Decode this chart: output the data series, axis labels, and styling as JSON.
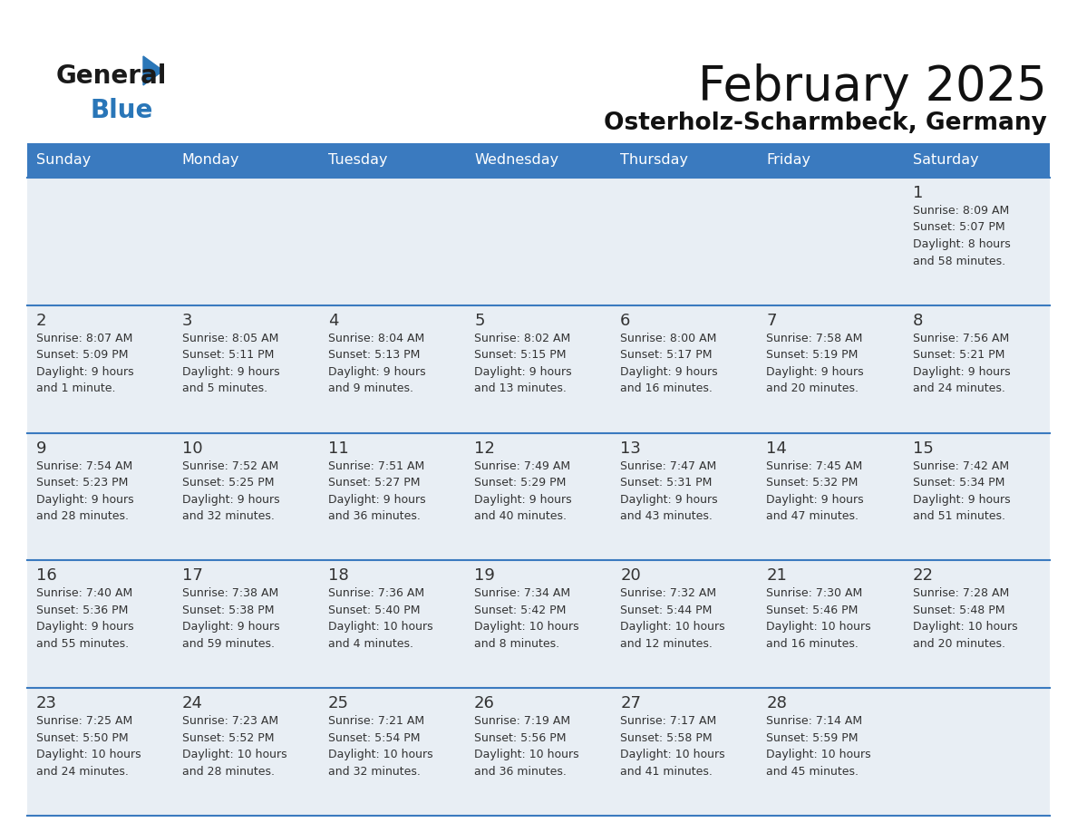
{
  "title": "February 2025",
  "subtitle": "Osterholz-Scharmbeck, Germany",
  "header_bg_color": "#3a7abf",
  "header_text_color": "#ffffff",
  "cell_bg_row0": "#e8eef4",
  "cell_bg_row1": "#e8eef4",
  "cell_bg_row2": "#e8eef4",
  "cell_bg_row3": "#e8eef4",
  "cell_bg_row4": "#e8eef4",
  "day_headers": [
    "Sunday",
    "Monday",
    "Tuesday",
    "Wednesday",
    "Thursday",
    "Friday",
    "Saturday"
  ],
  "logo_general_color": "#1a1a1a",
  "logo_blue_color": "#2976b8",
  "title_color": "#111111",
  "subtitle_color": "#111111",
  "text_color": "#333333",
  "border_color": "#3a7abf",
  "days": [
    {
      "day": 1,
      "col": 6,
      "row": 0,
      "sunrise": "8:09 AM",
      "sunset": "5:07 PM",
      "daylight_h": "8 hours",
      "daylight_m": "58 minutes"
    },
    {
      "day": 2,
      "col": 0,
      "row": 1,
      "sunrise": "8:07 AM",
      "sunset": "5:09 PM",
      "daylight_h": "9 hours",
      "daylight_m": "1 minute"
    },
    {
      "day": 3,
      "col": 1,
      "row": 1,
      "sunrise": "8:05 AM",
      "sunset": "5:11 PM",
      "daylight_h": "9 hours",
      "daylight_m": "5 minutes"
    },
    {
      "day": 4,
      "col": 2,
      "row": 1,
      "sunrise": "8:04 AM",
      "sunset": "5:13 PM",
      "daylight_h": "9 hours",
      "daylight_m": "9 minutes"
    },
    {
      "day": 5,
      "col": 3,
      "row": 1,
      "sunrise": "8:02 AM",
      "sunset": "5:15 PM",
      "daylight_h": "9 hours",
      "daylight_m": "13 minutes"
    },
    {
      "day": 6,
      "col": 4,
      "row": 1,
      "sunrise": "8:00 AM",
      "sunset": "5:17 PM",
      "daylight_h": "9 hours",
      "daylight_m": "16 minutes"
    },
    {
      "day": 7,
      "col": 5,
      "row": 1,
      "sunrise": "7:58 AM",
      "sunset": "5:19 PM",
      "daylight_h": "9 hours",
      "daylight_m": "20 minutes"
    },
    {
      "day": 8,
      "col": 6,
      "row": 1,
      "sunrise": "7:56 AM",
      "sunset": "5:21 PM",
      "daylight_h": "9 hours",
      "daylight_m": "24 minutes"
    },
    {
      "day": 9,
      "col": 0,
      "row": 2,
      "sunrise": "7:54 AM",
      "sunset": "5:23 PM",
      "daylight_h": "9 hours",
      "daylight_m": "28 minutes"
    },
    {
      "day": 10,
      "col": 1,
      "row": 2,
      "sunrise": "7:52 AM",
      "sunset": "5:25 PM",
      "daylight_h": "9 hours",
      "daylight_m": "32 minutes"
    },
    {
      "day": 11,
      "col": 2,
      "row": 2,
      "sunrise": "7:51 AM",
      "sunset": "5:27 PM",
      "daylight_h": "9 hours",
      "daylight_m": "36 minutes"
    },
    {
      "day": 12,
      "col": 3,
      "row": 2,
      "sunrise": "7:49 AM",
      "sunset": "5:29 PM",
      "daylight_h": "9 hours",
      "daylight_m": "40 minutes"
    },
    {
      "day": 13,
      "col": 4,
      "row": 2,
      "sunrise": "7:47 AM",
      "sunset": "5:31 PM",
      "daylight_h": "9 hours",
      "daylight_m": "43 minutes"
    },
    {
      "day": 14,
      "col": 5,
      "row": 2,
      "sunrise": "7:45 AM",
      "sunset": "5:32 PM",
      "daylight_h": "9 hours",
      "daylight_m": "47 minutes"
    },
    {
      "day": 15,
      "col": 6,
      "row": 2,
      "sunrise": "7:42 AM",
      "sunset": "5:34 PM",
      "daylight_h": "9 hours",
      "daylight_m": "51 minutes"
    },
    {
      "day": 16,
      "col": 0,
      "row": 3,
      "sunrise": "7:40 AM",
      "sunset": "5:36 PM",
      "daylight_h": "9 hours",
      "daylight_m": "55 minutes"
    },
    {
      "day": 17,
      "col": 1,
      "row": 3,
      "sunrise": "7:38 AM",
      "sunset": "5:38 PM",
      "daylight_h": "9 hours",
      "daylight_m": "59 minutes"
    },
    {
      "day": 18,
      "col": 2,
      "row": 3,
      "sunrise": "7:36 AM",
      "sunset": "5:40 PM",
      "daylight_h": "10 hours",
      "daylight_m": "4 minutes"
    },
    {
      "day": 19,
      "col": 3,
      "row": 3,
      "sunrise": "7:34 AM",
      "sunset": "5:42 PM",
      "daylight_h": "10 hours",
      "daylight_m": "8 minutes"
    },
    {
      "day": 20,
      "col": 4,
      "row": 3,
      "sunrise": "7:32 AM",
      "sunset": "5:44 PM",
      "daylight_h": "10 hours",
      "daylight_m": "12 minutes"
    },
    {
      "day": 21,
      "col": 5,
      "row": 3,
      "sunrise": "7:30 AM",
      "sunset": "5:46 PM",
      "daylight_h": "10 hours",
      "daylight_m": "16 minutes"
    },
    {
      "day": 22,
      "col": 6,
      "row": 3,
      "sunrise": "7:28 AM",
      "sunset": "5:48 PM",
      "daylight_h": "10 hours",
      "daylight_m": "20 minutes"
    },
    {
      "day": 23,
      "col": 0,
      "row": 4,
      "sunrise": "7:25 AM",
      "sunset": "5:50 PM",
      "daylight_h": "10 hours",
      "daylight_m": "24 minutes"
    },
    {
      "day": 24,
      "col": 1,
      "row": 4,
      "sunrise": "7:23 AM",
      "sunset": "5:52 PM",
      "daylight_h": "10 hours",
      "daylight_m": "28 minutes"
    },
    {
      "day": 25,
      "col": 2,
      "row": 4,
      "sunrise": "7:21 AM",
      "sunset": "5:54 PM",
      "daylight_h": "10 hours",
      "daylight_m": "32 minutes"
    },
    {
      "day": 26,
      "col": 3,
      "row": 4,
      "sunrise": "7:19 AM",
      "sunset": "5:56 PM",
      "daylight_h": "10 hours",
      "daylight_m": "36 minutes"
    },
    {
      "day": 27,
      "col": 4,
      "row": 4,
      "sunrise": "7:17 AM",
      "sunset": "5:58 PM",
      "daylight_h": "10 hours",
      "daylight_m": "41 minutes"
    },
    {
      "day": 28,
      "col": 5,
      "row": 4,
      "sunrise": "7:14 AM",
      "sunset": "5:59 PM",
      "daylight_h": "10 hours",
      "daylight_m": "45 minutes"
    }
  ]
}
